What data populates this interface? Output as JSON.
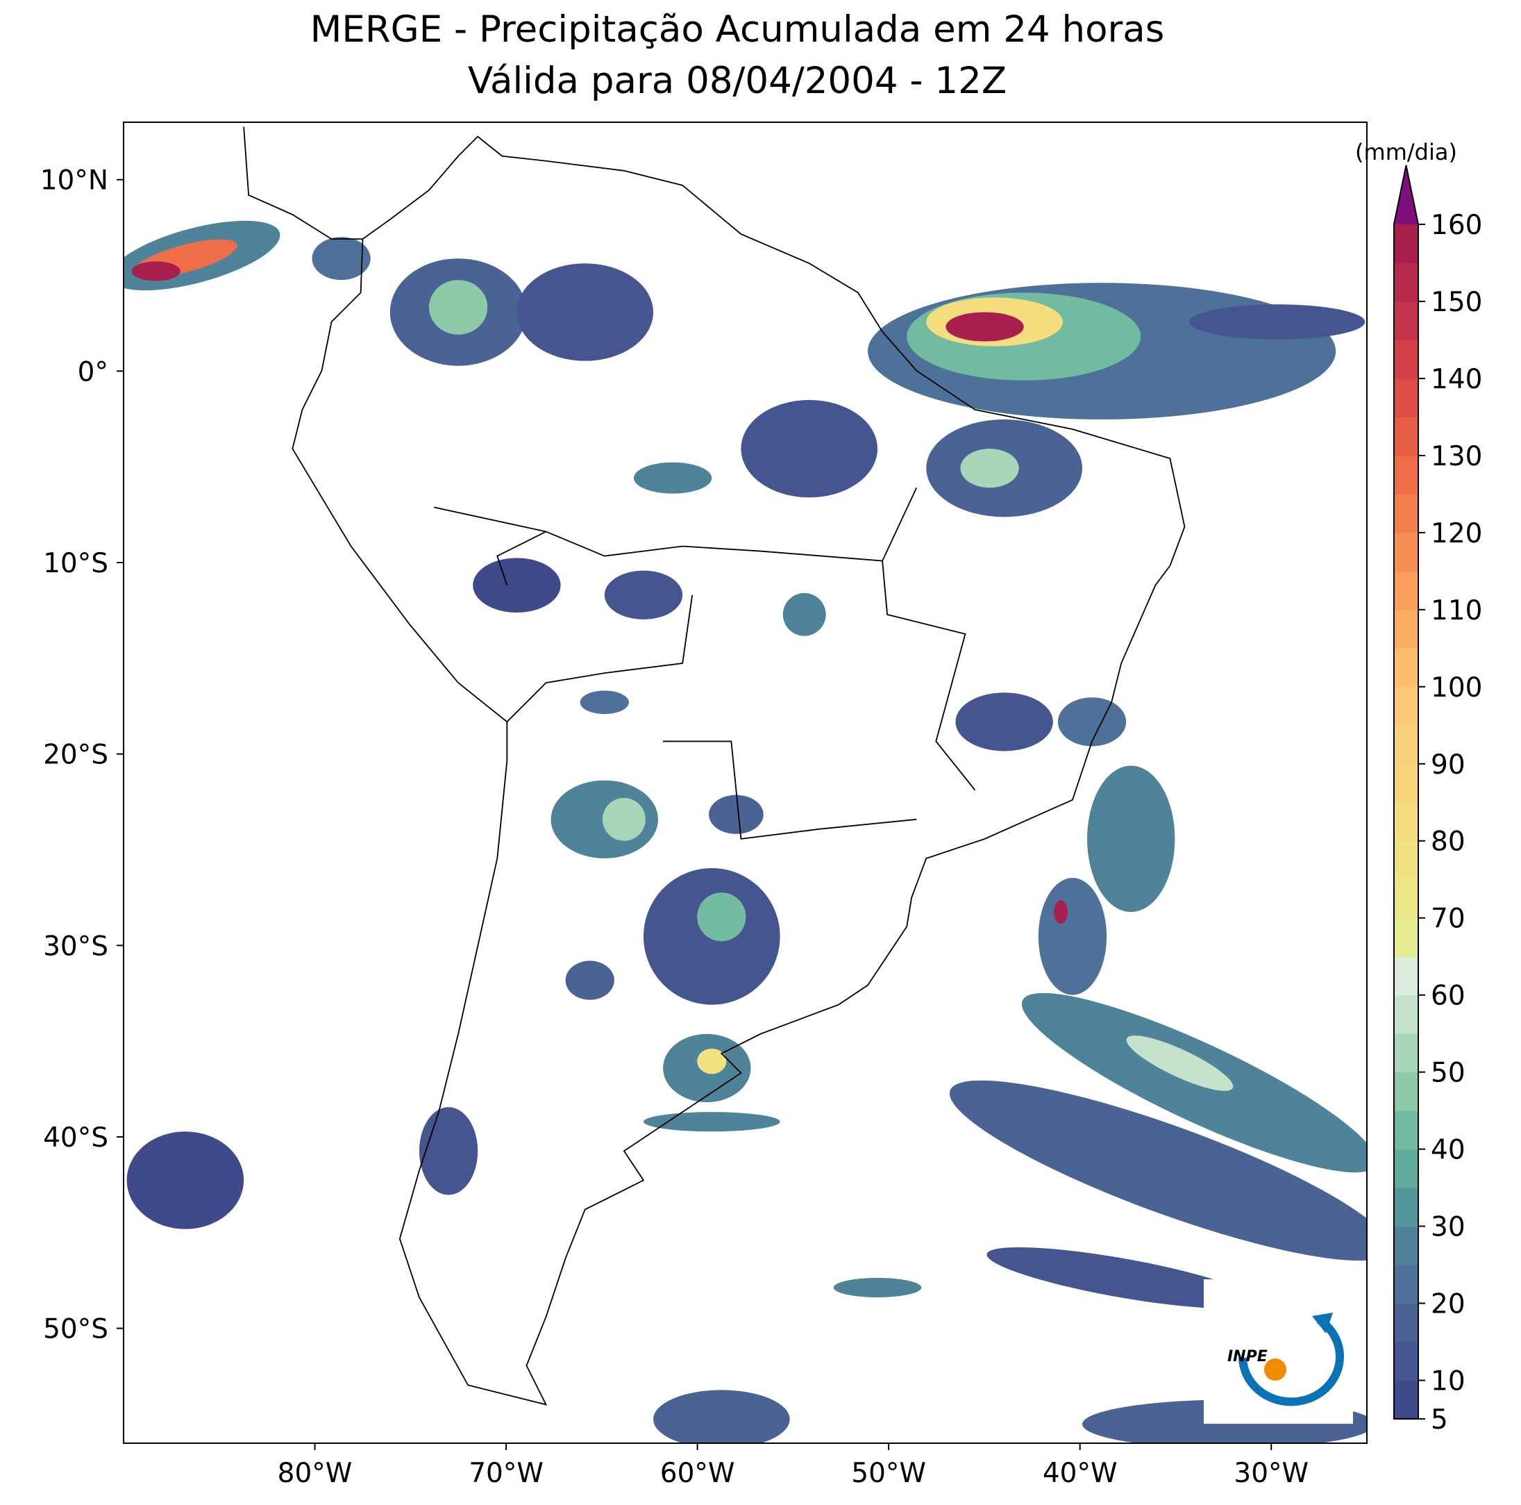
{
  "title": "MERGE - Precipitação Acumulada em 24 horas",
  "subtitle": "Válida para 08/04/2004 - 12Z",
  "map": {
    "lonlim": [
      -90,
      -25
    ],
    "latlim": [
      -56,
      13
    ],
    "xticks": [
      {
        "value": -80,
        "label": "80°W"
      },
      {
        "value": -70,
        "label": "70°W"
      },
      {
        "value": -60,
        "label": "60°W"
      },
      {
        "value": -50,
        "label": "50°W"
      },
      {
        "value": -40,
        "label": "40°W"
      },
      {
        "value": -30,
        "label": "30°W"
      }
    ],
    "yticks": [
      {
        "value": 10,
        "label": "10°N"
      },
      {
        "value": 0,
        "label": "0°"
      },
      {
        "value": -10,
        "label": "10°S"
      },
      {
        "value": -20,
        "label": "20°S"
      },
      {
        "value": -30,
        "label": "30°S"
      },
      {
        "value": -40,
        "label": "40°S"
      },
      {
        "value": -50,
        "label": "50°S"
      }
    ]
  },
  "colorbar": {
    "label": "(mm/dia)",
    "lim": [
      5,
      160
    ],
    "ticks": [
      5,
      10,
      20,
      30,
      40,
      50,
      60,
      70,
      80,
      90,
      100,
      110,
      120,
      130,
      140,
      150,
      160
    ],
    "colors": [
      "#3e4a89",
      "#45558f",
      "#4a6294",
      "#4d7198",
      "#4f8399",
      "#55969a",
      "#5fab9c",
      "#72bba0",
      "#8ccaaa",
      "#a8d6b8",
      "#c5e3cb",
      "#dcede0",
      "#e5ec92",
      "#ebe787",
      "#f1e382",
      "#f6de80",
      "#f8d47a",
      "#fbd07a",
      "#fcca77",
      "#fdbd6b",
      "#fbad62",
      "#f99e5b",
      "#f68f54",
      "#f27e4d",
      "#ee6e48",
      "#e65e46",
      "#dc4e46",
      "#d14148",
      "#c4344a",
      "#b7294c",
      "#a81e4e"
    ],
    "extend_color": "#7e0f7c"
  },
  "logo": "INPE"
}
